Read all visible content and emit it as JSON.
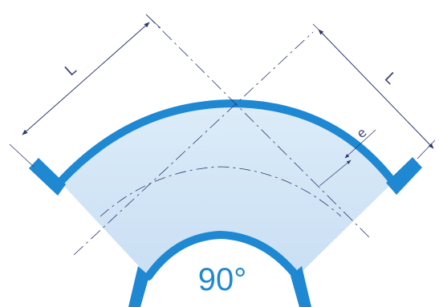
{
  "diagram": {
    "angle_label": "90°",
    "length_label_left": "L",
    "length_label_right": "L",
    "thickness_label": "e"
  },
  "colors": {
    "pipe_wall": "#1e88d2",
    "pipe_fill": "#d3e6f6",
    "dimension_line": "#2c3b6e",
    "label_text": "#3e4a7a",
    "angle_text": "#1e88d2"
  }
}
